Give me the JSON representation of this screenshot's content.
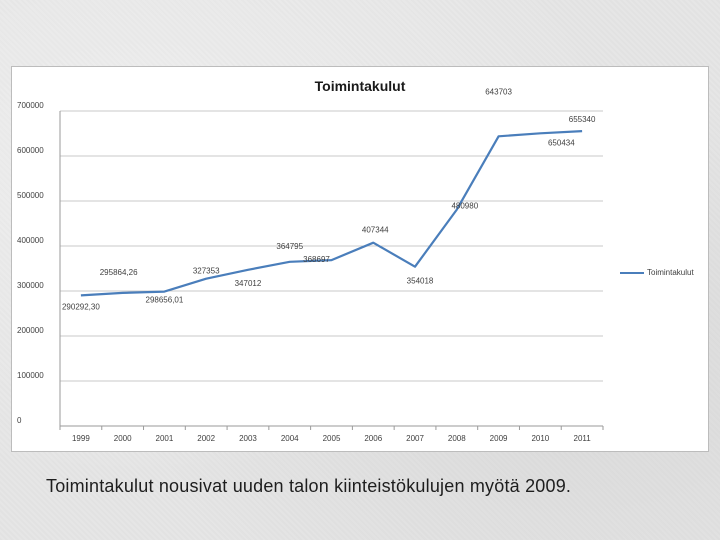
{
  "chart_data": {
    "type": "line",
    "title": "Toimintakulut",
    "categories": [
      "1999",
      "2000",
      "2001",
      "2002",
      "2003",
      "2004",
      "2005",
      "2006",
      "2007",
      "2008",
      "2009",
      "2010",
      "2011"
    ],
    "series": [
      {
        "name": "Toimintakulut",
        "color": "#4a7ebb",
        "values": [
          290292.3,
          295864.26,
          298656.01,
          327353,
          347012,
          364795,
          368697,
          407344,
          354018,
          480980,
          643703,
          650434,
          655340
        ],
        "labels": [
          "290292,30",
          "295864,26",
          "298656,01",
          "327353",
          "347012",
          "364795",
          "368697",
          "407344",
          "354018",
          "480980",
          "643703",
          "650434",
          "655340"
        ]
      }
    ],
    "y_ticks": [
      "0",
      "100000",
      "200000",
      "300000",
      "400000",
      "500000",
      "600000",
      "700000"
    ],
    "ylim": [
      0,
      700000
    ],
    "grid": true,
    "legend": "right"
  },
  "caption": "Toimintakulut nousivat uuden talon kiinteistökulujen myötä 2009."
}
